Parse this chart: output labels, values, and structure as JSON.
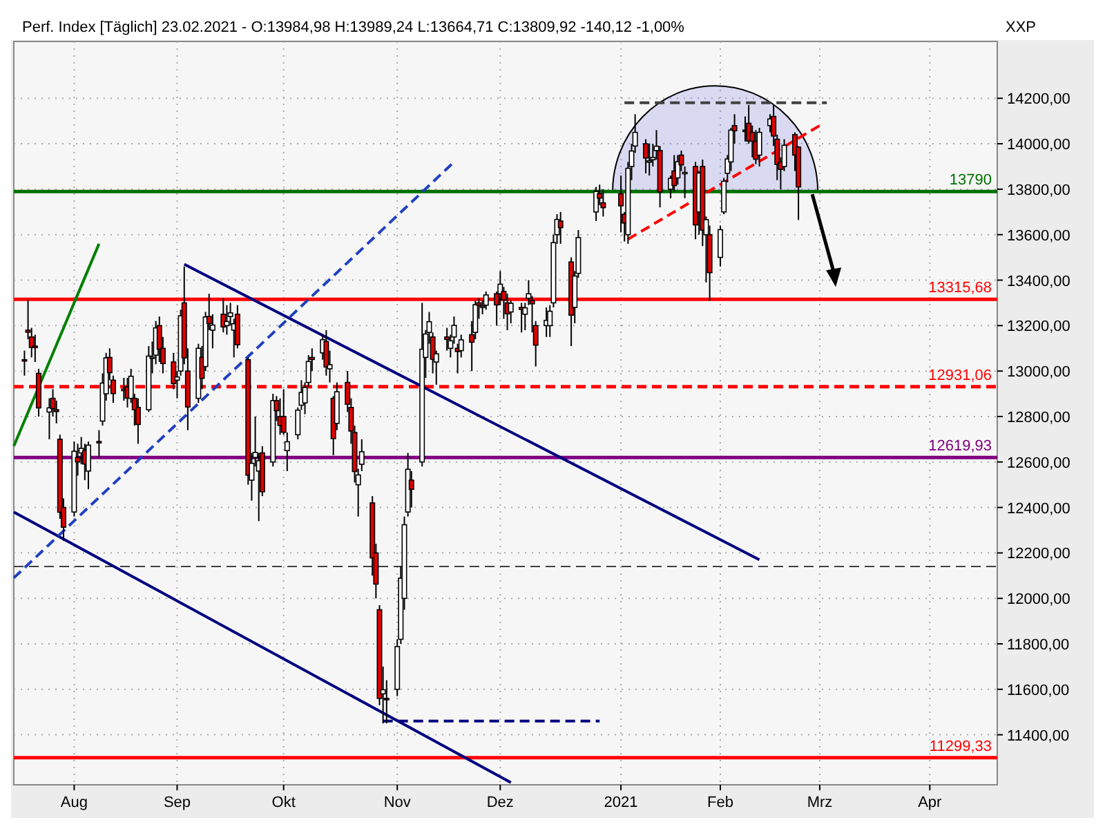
{
  "chart_data": {
    "type": "candlestick",
    "title": "Perf. Index [Täglich] 23.02.2021 - O:13984,98 H:13989,24 L:13664,71 C:13809,92 -140,12 -1,00%",
    "annotations": [
      "XXP"
    ],
    "x": [
      "2020-07-20",
      "2020-07-21",
      "2020-07-22",
      "2020-07-23",
      "2020-07-24",
      "2020-07-27",
      "2020-07-28",
      "2020-07-29",
      "2020-07-30",
      "2020-07-31",
      "2020-08-03",
      "2020-08-04",
      "2020-08-05",
      "2020-08-06",
      "2020-08-07",
      "2020-08-10",
      "2020-08-11",
      "2020-08-12",
      "2020-08-13",
      "2020-08-14",
      "2020-08-17",
      "2020-08-18",
      "2020-08-19",
      "2020-08-20",
      "2020-08-21",
      "2020-08-24",
      "2020-08-25",
      "2020-08-26",
      "2020-08-27",
      "2020-08-28",
      "2020-08-31",
      "2020-09-01",
      "2020-09-02",
      "2020-09-03",
      "2020-09-04",
      "2020-09-07",
      "2020-09-08",
      "2020-09-09",
      "2020-09-10",
      "2020-09-11",
      "2020-09-14",
      "2020-09-15",
      "2020-09-16",
      "2020-09-17",
      "2020-09-18",
      "2020-09-21",
      "2020-09-22",
      "2020-09-23",
      "2020-09-24",
      "2020-09-25",
      "2020-09-28",
      "2020-09-29",
      "2020-09-30",
      "2020-10-01",
      "2020-10-02",
      "2020-10-05",
      "2020-10-06",
      "2020-10-07",
      "2020-10-08",
      "2020-10-09",
      "2020-10-12",
      "2020-10-13",
      "2020-10-14",
      "2020-10-15",
      "2020-10-16",
      "2020-10-19",
      "2020-10-20",
      "2020-10-21",
      "2020-10-22",
      "2020-10-23",
      "2020-10-26",
      "2020-10-27",
      "2020-10-28",
      "2020-10-29",
      "2020-10-30",
      "2020-11-02",
      "2020-11-03",
      "2020-11-04",
      "2020-11-05",
      "2020-11-06",
      "2020-11-09",
      "2020-11-10",
      "2020-11-11",
      "2020-11-12",
      "2020-11-13",
      "2020-11-16",
      "2020-11-17",
      "2020-11-18",
      "2020-11-19",
      "2020-11-20",
      "2020-11-23",
      "2020-11-24",
      "2020-11-25",
      "2020-11-26",
      "2020-11-27",
      "2020-11-30",
      "2020-12-01",
      "2020-12-02",
      "2020-12-03",
      "2020-12-04",
      "2020-12-07",
      "2020-12-08",
      "2020-12-09",
      "2020-12-10",
      "2020-12-11",
      "2020-12-14",
      "2020-12-15",
      "2020-12-16",
      "2020-12-17",
      "2020-12-18",
      "2020-12-21",
      "2020-12-22",
      "2020-12-23",
      "2020-12-28",
      "2020-12-29",
      "2020-12-30",
      "2021-01-04",
      "2021-01-05",
      "2021-01-06",
      "2021-01-07",
      "2021-01-08",
      "2021-01-11",
      "2021-01-12",
      "2021-01-13",
      "2021-01-14",
      "2021-01-15",
      "2021-01-18",
      "2021-01-19",
      "2021-01-20",
      "2021-01-21",
      "2021-01-22",
      "2021-01-25",
      "2021-01-26",
      "2021-01-27",
      "2021-01-28",
      "2021-01-29",
      "2021-02-01",
      "2021-02-02",
      "2021-02-03",
      "2021-02-04",
      "2021-02-05",
      "2021-02-08",
      "2021-02-09",
      "2021-02-10",
      "2021-02-11",
      "2021-02-12",
      "2021-02-15",
      "2021-02-16",
      "2021-02-17",
      "2021-02-18",
      "2021-02-19",
      "2021-02-22",
      "2021-02-23"
    ],
    "ohlc": [
      [
        13050,
        13090,
        12980,
        13046
      ],
      [
        13180,
        13313,
        13140,
        13171
      ],
      [
        13150,
        13190,
        13060,
        13104
      ],
      [
        13110,
        13160,
        13040,
        13103
      ],
      [
        12990,
        13010,
        12800,
        12838
      ],
      [
        12820,
        12880,
        12700,
        12838
      ],
      [
        12880,
        12920,
        12800,
        12835
      ],
      [
        12830,
        12870,
        12770,
        12822
      ],
      [
        12700,
        12720,
        12350,
        12379
      ],
      [
        12400,
        12440,
        12253,
        12313
      ],
      [
        12380,
        12690,
        12360,
        12647
      ],
      [
        12620,
        12680,
        12540,
        12600
      ],
      [
        12640,
        12710,
        12590,
        12660
      ],
      [
        12650,
        12680,
        12520,
        12591
      ],
      [
        12560,
        12690,
        12480,
        12674
      ],
      [
        12690,
        12740,
        12620,
        12687
      ],
      [
        12780,
        12990,
        12760,
        12947
      ],
      [
        12900,
        13080,
        12870,
        13058
      ],
      [
        13060,
        13100,
        12960,
        12993
      ],
      [
        12960,
        12980,
        12860,
        12901
      ],
      [
        12920,
        12970,
        12870,
        12920
      ],
      [
        12930,
        12970,
        12840,
        12881
      ],
      [
        12880,
        13010,
        12860,
        12977
      ],
      [
        12880,
        12900,
        12760,
        12830
      ],
      [
        12840,
        12880,
        12680,
        12765
      ],
      [
        12830,
        13110,
        12820,
        13066
      ],
      [
        13060,
        13130,
        12990,
        13062
      ],
      [
        13070,
        13220,
        13030,
        13190
      ],
      [
        13200,
        13240,
        13040,
        13096
      ],
      [
        13100,
        13150,
        12990,
        13033
      ],
      [
        13040,
        13080,
        12920,
        12945
      ],
      [
        12960,
        13000,
        12880,
        12974
      ],
      [
        13000,
        13270,
        12980,
        13243
      ],
      [
        13300,
        13460,
        13030,
        13058
      ],
      [
        13000,
        13100,
        12740,
        12842
      ],
      [
        12880,
        13120,
        12860,
        13100
      ],
      [
        13060,
        13110,
        12920,
        12968
      ],
      [
        13020,
        13260,
        13000,
        13238
      ],
      [
        13240,
        13340,
        13180,
        13209
      ],
      [
        13180,
        13250,
        13100,
        13202
      ],
      [
        13250,
        13320,
        13170,
        13194
      ],
      [
        13200,
        13290,
        13160,
        13218
      ],
      [
        13240,
        13300,
        13200,
        13256
      ],
      [
        13180,
        13230,
        13060,
        13208
      ],
      [
        13250,
        13290,
        13100,
        13116
      ],
      [
        13050,
        13060,
        12500,
        12542
      ],
      [
        12520,
        12640,
        12430,
        12594
      ],
      [
        12620,
        12800,
        12580,
        12642
      ],
      [
        12560,
        12640,
        12340,
        12606
      ],
      [
        12640,
        12670,
        12450,
        12469
      ],
      [
        12600,
        12900,
        12580,
        12870
      ],
      [
        12870,
        12890,
        12780,
        12826
      ],
      [
        12800,
        12880,
        12720,
        12761
      ],
      [
        12800,
        12920,
        12720,
        12731
      ],
      [
        12650,
        12730,
        12560,
        12689
      ],
      [
        12720,
        12840,
        12700,
        12828
      ],
      [
        12850,
        12960,
        12830,
        12906
      ],
      [
        12860,
        12950,
        12810,
        12928
      ],
      [
        12950,
        13070,
        12930,
        13042
      ],
      [
        13060,
        13100,
        13000,
        13051
      ],
      [
        13080,
        13160,
        13050,
        13138
      ],
      [
        13130,
        13180,
        12980,
        13018
      ],
      [
        13010,
        13090,
        12950,
        13028
      ],
      [
        12880,
        12890,
        12630,
        12703
      ],
      [
        12770,
        12950,
        12740,
        12909
      ],
      [
        12950,
        13000,
        12820,
        12854
      ],
      [
        12840,
        12880,
        12680,
        12736
      ],
      [
        12730,
        12760,
        12510,
        12558
      ],
      [
        12500,
        12570,
        12360,
        12543
      ],
      [
        12590,
        12700,
        12560,
        12645
      ],
      [
        12420,
        12450,
        12100,
        12178
      ],
      [
        12200,
        12240,
        12000,
        12063
      ],
      [
        11950,
        11970,
        11530,
        11560
      ],
      [
        11580,
        11700,
        11450,
        11598
      ],
      [
        11560,
        11640,
        11450,
        11556
      ],
      [
        11600,
        11820,
        11570,
        11788
      ],
      [
        11820,
        12140,
        11800,
        12089
      ],
      [
        12000,
        12360,
        11950,
        12324
      ],
      [
        12380,
        12640,
        12360,
        12568
      ],
      [
        12520,
        12560,
        12400,
        12480
      ],
      [
        12600,
        13300,
        12580,
        13096
      ],
      [
        13060,
        13180,
        12970,
        13163
      ],
      [
        13170,
        13260,
        13120,
        13217
      ],
      [
        13150,
        13170,
        12990,
        13052
      ],
      [
        13040,
        13090,
        12940,
        13076
      ],
      [
        13150,
        13190,
        13090,
        13139
      ],
      [
        13100,
        13160,
        13060,
        13133
      ],
      [
        13150,
        13240,
        13120,
        13201
      ],
      [
        13100,
        13120,
        12990,
        13086
      ],
      [
        13090,
        13160,
        13060,
        13137
      ],
      [
        13160,
        13220,
        13000,
        13127
      ],
      [
        13170,
        13310,
        13140,
        13292
      ],
      [
        13300,
        13320,
        13230,
        13289
      ],
      [
        13280,
        13310,
        13250,
        13286
      ],
      [
        13290,
        13350,
        13270,
        13335
      ],
      [
        13340,
        13350,
        13200,
        13291
      ],
      [
        13340,
        13440,
        13290,
        13382
      ],
      [
        13350,
        13370,
        13230,
        13313
      ],
      [
        13300,
        13340,
        13180,
        13252
      ],
      [
        13260,
        13310,
        13210,
        13298
      ],
      [
        13280,
        13300,
        13170,
        13271
      ],
      [
        13250,
        13300,
        13180,
        13278
      ],
      [
        13320,
        13400,
        13290,
        13340
      ],
      [
        13310,
        13330,
        13170,
        13296
      ],
      [
        13200,
        13220,
        13020,
        13114
      ],
      [
        13200,
        13280,
        13150,
        13223
      ],
      [
        13200,
        13290,
        13150,
        13263
      ],
      [
        13300,
        13600,
        13280,
        13565
      ],
      [
        13600,
        13690,
        13560,
        13667
      ],
      [
        13660,
        13700,
        13560,
        13631
      ],
      [
        13480,
        13500,
        13110,
        13246
      ],
      [
        13280,
        13440,
        13210,
        13418
      ],
      [
        13430,
        13620,
        13410,
        13587
      ],
      [
        13700,
        13810,
        13660,
        13790
      ],
      [
        13780,
        13820,
        13730,
        13761
      ],
      [
        13740,
        13800,
        13680,
        13719
      ],
      [
        13780,
        13860,
        13610,
        13727
      ],
      [
        13690,
        13700,
        13570,
        13651
      ],
      [
        13600,
        13920,
        13560,
        13892
      ],
      [
        13900,
        14000,
        13840,
        13968
      ],
      [
        13990,
        14130,
        13960,
        14050
      ],
      [
        14000,
        14020,
        13870,
        13937
      ],
      [
        13920,
        14000,
        13860,
        13925
      ],
      [
        13930,
        14000,
        13900,
        13940
      ],
      [
        13970,
        14060,
        13930,
        13989
      ],
      [
        13970,
        13990,
        13720,
        13788
      ],
      [
        13800,
        13860,
        13760,
        13848
      ],
      [
        13880,
        13950,
        13790,
        13816
      ],
      [
        13850,
        13950,
        13820,
        13921
      ],
      [
        13950,
        13970,
        13880,
        13907
      ],
      [
        13870,
        13900,
        13760,
        13874
      ],
      [
        13900,
        13920,
        13580,
        13643
      ],
      [
        13700,
        13880,
        13600,
        13871
      ],
      [
        13900,
        13930,
        13550,
        13620
      ],
      [
        13600,
        13680,
        13390,
        13666
      ],
      [
        13600,
        13640,
        13310,
        13433
      ],
      [
        13500,
        13640,
        13460,
        13622
      ],
      [
        13700,
        13850,
        13690,
        13835
      ],
      [
        13870,
        13950,
        13830,
        13933
      ],
      [
        13920,
        14070,
        13880,
        14060
      ],
      [
        14080,
        14130,
        14000,
        14057
      ],
      [
        14060,
        14120,
        14010,
        14059
      ],
      [
        14090,
        14170,
        14000,
        14012
      ],
      [
        14050,
        14080,
        13940,
        14011
      ],
      [
        14010,
        14060,
        13910,
        13932
      ],
      [
        13950,
        14070,
        13900,
        14050
      ],
      [
        14080,
        14130,
        14050,
        14109
      ],
      [
        14120,
        14170,
        13990,
        14034
      ],
      [
        14020,
        14040,
        13840,
        13909
      ],
      [
        13920,
        13940,
        13800,
        13887
      ],
      [
        13900,
        14020,
        13880,
        13993
      ],
      [
        14040,
        14050,
        13880,
        13950
      ],
      [
        13984.98,
        13989.24,
        13664.71,
        13809.92
      ]
    ],
    "series": [
      {
        "type": "line",
        "x": [
          "2020-09-03",
          "2021-02-12"
        ],
        "values": [
          13470,
          12170
        ],
        "color": "#000080",
        "line_style": "solid"
      },
      {
        "type": "line",
        "x": [
          "2020-07-17",
          "2020-12-04"
        ],
        "values": [
          12380,
          11190
        ],
        "color": "#000080",
        "line_style": "solid"
      },
      {
        "type": "line",
        "x": [
          "2020-07-17",
          "2020-08-10"
        ],
        "values": [
          12670,
          13560
        ],
        "color": "#008000",
        "line_style": "solid"
      },
      {
        "type": "line",
        "x": [
          "2020-07-17",
          "2020-11-18"
        ],
        "values": [
          12090,
          13920
        ],
        "color": "#2040c0",
        "line_style": "dashed"
      },
      {
        "type": "line",
        "x": [
          "2021-01-06",
          "2021-03-01"
        ],
        "values": [
          13580,
          14080
        ],
        "color": "#ff0000",
        "line_style": "dashed"
      },
      {
        "type": "line",
        "x": [
          "2021-01-05",
          "2021-03-03"
        ],
        "values": [
          14180,
          14180
        ],
        "color": "#404040",
        "line_style": "dashed"
      },
      {
        "type": "line",
        "x": [
          "2020-10-29",
          "2020-12-29"
        ],
        "values": [
          11460,
          11460
        ],
        "color": "#000080",
        "line_style": "dashed"
      }
    ],
    "ref_lines": [
      {
        "axis": "y",
        "value": 13790,
        "label": "13790",
        "color": "#007000",
        "line_style": "solid"
      },
      {
        "axis": "y",
        "value": 13315.68,
        "label": "13315,68",
        "color": "#ff0000",
        "line_style": "solid"
      },
      {
        "axis": "y",
        "value": 12931.06,
        "label": "12931,06",
        "color": "#ff0000",
        "line_style": "dashed"
      },
      {
        "axis": "y",
        "value": 12619.93,
        "label": "12619,93",
        "color": "#800080",
        "line_style": "solid"
      },
      {
        "axis": "y",
        "value": 11299.33,
        "label": "11299,33",
        "color": "#ff0000",
        "line_style": "solid"
      },
      {
        "axis": "y",
        "value": 12140,
        "color": "#404040",
        "line_style": "dashed"
      }
    ],
    "xlim": [
      "2020-07-17",
      "2021-04-20"
    ],
    "xticks": [
      {
        "value": "2020-08-03",
        "label": "Aug"
      },
      {
        "value": "2020-09-01",
        "label": "Sep"
      },
      {
        "value": "2020-10-01",
        "label": "Okt"
      },
      {
        "value": "2020-11-02",
        "label": "Nov"
      },
      {
        "value": "2020-12-01",
        "label": "Dez"
      },
      {
        "value": "2021-01-04",
        "label": "2021"
      },
      {
        "value": "2021-02-01",
        "label": "Feb"
      },
      {
        "value": "2021-03-01",
        "label": "Mrz"
      },
      {
        "value": "2021-04-01",
        "label": "Apr"
      }
    ],
    "ylim": [
      11180,
      14450
    ],
    "yticks": [
      {
        "value": 11400,
        "label": "11400,00"
      },
      {
        "value": 11600,
        "label": "11600,00"
      },
      {
        "value": 11800,
        "label": "11800,00"
      },
      {
        "value": 12000,
        "label": "12000,00"
      },
      {
        "value": 12200,
        "label": "12200,00"
      },
      {
        "value": 12400,
        "label": "12400,00"
      },
      {
        "value": 12600,
        "label": "12600,00"
      },
      {
        "value": 12800,
        "label": "12800,00"
      },
      {
        "value": 13000,
        "label": "13000,00"
      },
      {
        "value": 13200,
        "label": "13200,00"
      },
      {
        "value": 13400,
        "label": "13400,00"
      },
      {
        "value": 13600,
        "label": "13600,00"
      },
      {
        "value": 13800,
        "label": "13800,00"
      },
      {
        "value": 14000,
        "label": "14000,00"
      },
      {
        "value": 14200,
        "label": "14200,00"
      }
    ],
    "grid": true
  }
}
